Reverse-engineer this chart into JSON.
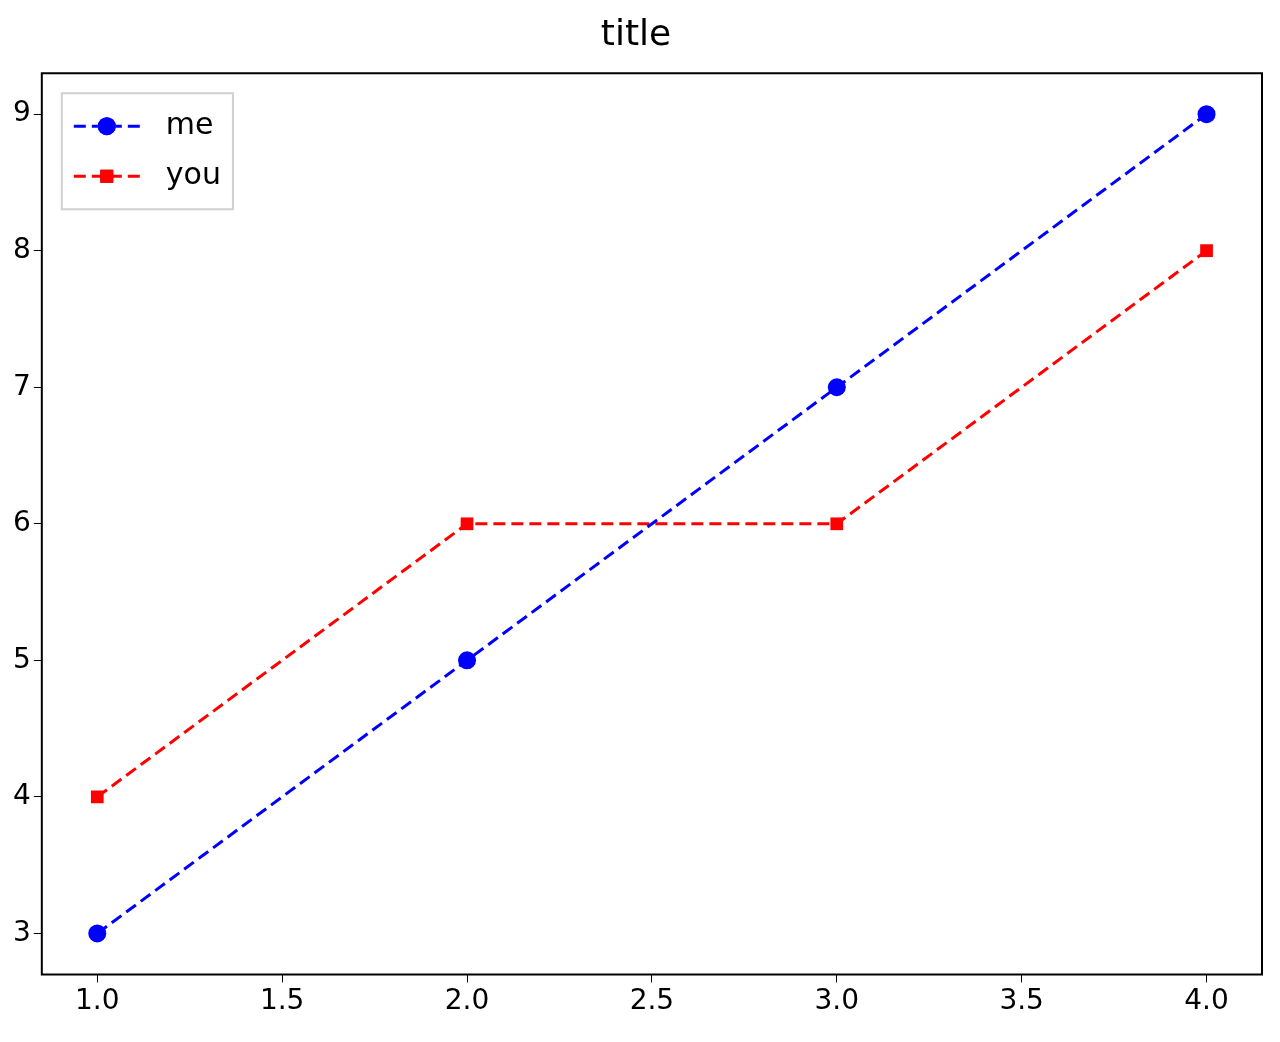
{
  "chart_data": {
    "type": "line",
    "title": "title",
    "x": [
      1,
      2,
      3,
      4
    ],
    "series": [
      {
        "name": "me",
        "color": "#0000ff",
        "values": [
          3,
          5,
          7,
          9
        ],
        "marker": "circle"
      },
      {
        "name": "you",
        "color": "#ff0000",
        "values": [
          4,
          6,
          6,
          8
        ],
        "marker": "square"
      }
    ],
    "xlim": [
      0.85,
      4.15
    ],
    "xticks": [
      {
        "value": 1,
        "label": "1.0"
      },
      {
        "value": 1.5,
        "label": "1.5"
      },
      {
        "value": 2,
        "label": "2.0"
      },
      {
        "value": 2.5,
        "label": "2.5"
      },
      {
        "value": 3,
        "label": "3.0"
      },
      {
        "value": 3.5,
        "label": "3.5"
      },
      {
        "value": 4,
        "label": "4.0"
      }
    ],
    "ylim": [
      2.7,
      9.3
    ],
    "yticks": [
      3,
      4,
      5,
      6,
      7,
      8,
      9
    ],
    "grid": false,
    "legend": "top left",
    "line_style": "dashed"
  }
}
